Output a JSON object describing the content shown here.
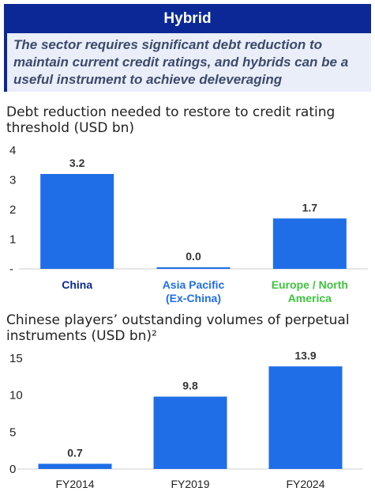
{
  "header": {
    "title": "Hybrid"
  },
  "summary": {
    "text": "The sector requires significant debt reduction to maintain current credit ratings, and hybrids can be a useful instrument to achieve deleveraging"
  },
  "colors": {
    "bar": "#1f6ee8",
    "header_bg": "#0b2896",
    "summary_bg": "#e9eef9",
    "green_label": "#3ec43e",
    "blue_label": "#1f6ee8",
    "dark_label": "#0b2896"
  },
  "chart_data": [
    {
      "type": "bar",
      "title": "Debt reduction needed to restore to credit rating threshold (USD bn)",
      "categories": [
        "China",
        "Asia Pacific (Ex-China)",
        "Europe / North America"
      ],
      "category_lines": [
        [
          "China"
        ],
        [
          "Asia Pacific",
          "(Ex-China)"
        ],
        [
          "Europe / North",
          "America"
        ]
      ],
      "category_colors": [
        "#0b2896",
        "#1f6ee8",
        "#3ec43e"
      ],
      "values": [
        3.2,
        0.0,
        1.7
      ],
      "data_labels": [
        "3.2",
        "0.0",
        "1.7"
      ],
      "ylim": [
        0,
        4
      ],
      "yticks": [
        0,
        1,
        2,
        3,
        4
      ],
      "ytick_labels": [
        "-",
        "1",
        "2",
        "3",
        "4"
      ],
      "grid": false
    },
    {
      "type": "bar",
      "title": "Chinese players’ outstanding volumes of perpetual instruments (USD bn)²",
      "categories": [
        "FY2014",
        "FY2019",
        "FY2024"
      ],
      "category_lines": [
        [
          "FY2014"
        ],
        [
          "FY2019"
        ],
        [
          "FY2024"
        ]
      ],
      "category_colors": [
        "#222222",
        "#222222",
        "#222222"
      ],
      "values": [
        0.7,
        9.8,
        13.9
      ],
      "data_labels": [
        "0.7",
        "9.8",
        "13.9"
      ],
      "ylim": [
        0,
        15
      ],
      "yticks": [
        0,
        5,
        10,
        15
      ],
      "ytick_labels": [
        "0",
        "5",
        "10",
        "15"
      ],
      "grid": false
    }
  ]
}
